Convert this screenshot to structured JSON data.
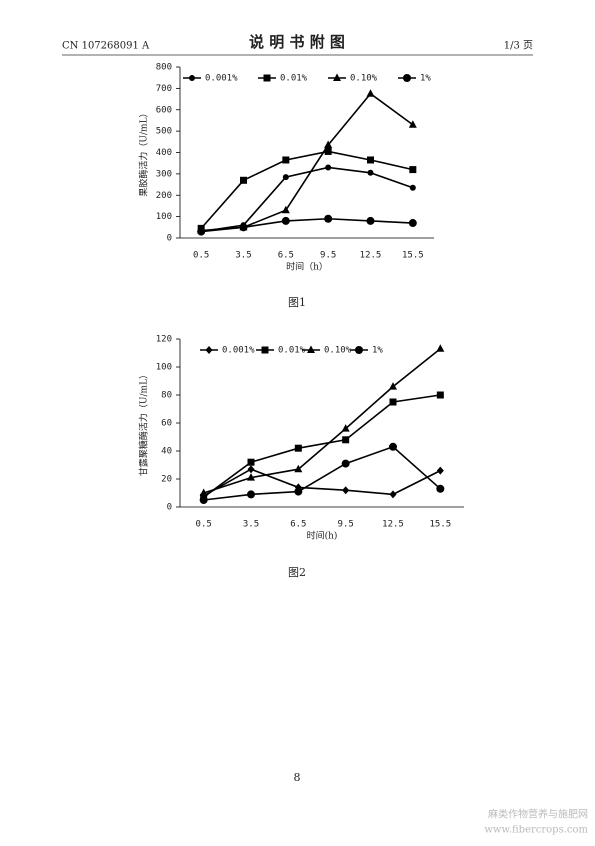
{
  "header": {
    "doc_number": "CN 107268091 A",
    "title": "说 明 书 附 图",
    "page_of": "1/3 页"
  },
  "captions": [
    "图1",
    "图2"
  ],
  "footer": {
    "page_number": "8",
    "watermark": "麻类作物营养与施肥网",
    "watermark_url": "www.fibercrops.com"
  },
  "chart_data": [
    {
      "type": "line",
      "x_label": "时间（h）",
      "y_label": "果胶酶活力（U/mL）",
      "categories": [
        "0.5",
        "3.5",
        "6.5",
        "9.5",
        "12.5",
        "15.5"
      ],
      "ylim": [
        0,
        800
      ],
      "yticks": [
        0,
        100,
        200,
        300,
        400,
        500,
        600,
        700,
        800
      ],
      "series": [
        {
          "name": "0.001%",
          "color": "#000000",
          "marker": "circle-small",
          "values": [
            30,
            60,
            285,
            330,
            305,
            235
          ]
        },
        {
          "name": "0.01%",
          "color": "#000000",
          "marker": "square",
          "values": [
            45,
            270,
            365,
            405,
            365,
            320
          ]
        },
        {
          "name": "0.10%",
          "color": "#000000",
          "marker": "triangle",
          "values": [
            35,
            50,
            130,
            435,
            675,
            530
          ]
        },
        {
          "name": "1%",
          "color": "#000000",
          "marker": "circle",
          "values": [
            30,
            50,
            80,
            90,
            80,
            70
          ]
        }
      ]
    },
    {
      "type": "line",
      "x_label": "时间(h)",
      "y_label": "甘露聚糖酶活力（U/mL）",
      "categories": [
        "0.5",
        "3.5",
        "6.5",
        "9.5",
        "12.5",
        "15.5"
      ],
      "ylim": [
        0,
        120
      ],
      "yticks": [
        0,
        20,
        40,
        60,
        80,
        100,
        120
      ],
      "series": [
        {
          "name": "0.001%",
          "color": "#000000",
          "marker": "diamond",
          "values": [
            8,
            27,
            14,
            12,
            9,
            26
          ]
        },
        {
          "name": "0.01%",
          "color": "#000000",
          "marker": "square",
          "values": [
            7,
            32,
            42,
            48,
            75,
            80
          ]
        },
        {
          "name": "0.10%",
          "color": "#000000",
          "marker": "triangle",
          "values": [
            10,
            21,
            27,
            56,
            86,
            113
          ]
        },
        {
          "name": "1%",
          "color": "#000000",
          "marker": "circle",
          "values": [
            5,
            9,
            11,
            31,
            43,
            13
          ]
        }
      ]
    }
  ]
}
